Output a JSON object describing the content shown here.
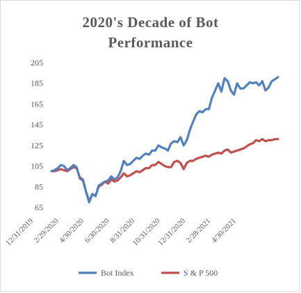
{
  "chart_data": {
    "type": "line",
    "title": "2020's Decade of Bot Performance",
    "title_lines": [
      "2020's Decade of Bot",
      "Performance"
    ],
    "xlabel": "",
    "ylabel": "",
    "ylim": [
      65,
      205
    ],
    "y_ticks": [
      65,
      85,
      105,
      125,
      145,
      165,
      185,
      205
    ],
    "x_tick_labels": [
      "12/31/2019",
      "2/29/2020",
      "4/30/2020",
      "6/30/2020",
      "8/31/2020",
      "10/31/2020",
      "12/31/2020",
      "2/28/2021",
      "4/30/2021"
    ],
    "grid": false,
    "legend": "bottom",
    "series": [
      {
        "name": "Bot Index",
        "color": "#4f81bd",
        "values": [
          100,
          101,
          103,
          106,
          105,
          101,
          103,
          106,
          104,
          93,
          91,
          80,
          70,
          78,
          76,
          86,
          88,
          90,
          91,
          95,
          92,
          94,
          100,
          110,
          106,
          107,
          110,
          113,
          112,
          115,
          117,
          116,
          120,
          120,
          125,
          123,
          122,
          120,
          127,
          129,
          128,
          133,
          125,
          130,
          140,
          148,
          155,
          158,
          157,
          160,
          160,
          171,
          178,
          185,
          177,
          190,
          187,
          178,
          174,
          185,
          180,
          180,
          183,
          186,
          185,
          186,
          183,
          187,
          178,
          181,
          187,
          189,
          191
        ]
      },
      {
        "name": "S & P 500",
        "color": "#c0504d",
        "values": [
          100,
          100,
          101,
          102,
          101,
          100,
          102,
          104,
          103,
          94,
          92,
          80,
          71,
          78,
          76,
          85,
          87,
          90,
          88,
          92,
          90,
          91,
          94,
          98,
          95,
          96,
          98,
          100,
          99,
          101,
          103,
          103,
          106,
          106,
          109,
          107,
          105,
          104,
          104,
          109,
          110,
          108,
          102,
          108,
          110,
          110,
          112,
          113,
          114,
          115,
          114,
          116,
          117,
          118,
          117,
          120,
          121,
          118,
          119,
          120,
          121,
          122,
          124,
          126,
          127,
          130,
          129,
          131,
          129,
          130,
          130,
          131,
          131
        ]
      }
    ]
  }
}
